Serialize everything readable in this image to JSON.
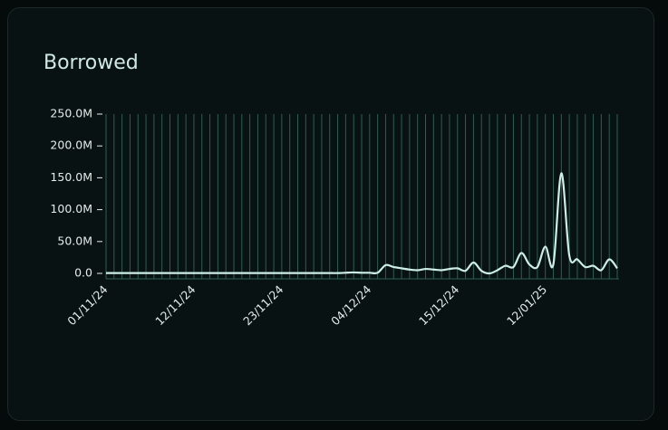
{
  "chart_data": {
    "type": "line",
    "title": "Borrowed",
    "categories": [
      "01/11/24",
      null,
      null,
      null,
      null,
      null,
      null,
      null,
      null,
      null,
      null,
      "12/11/24",
      null,
      null,
      null,
      null,
      null,
      null,
      null,
      null,
      null,
      null,
      "23/11/24",
      null,
      null,
      null,
      null,
      null,
      null,
      null,
      null,
      null,
      null,
      "04/12/24",
      null,
      null,
      null,
      null,
      null,
      null,
      null,
      null,
      null,
      null,
      "15/12/24",
      null,
      null,
      null,
      null,
      null,
      null,
      null,
      null,
      null,
      null,
      "12/01/25",
      null,
      null,
      null,
      null,
      null,
      null,
      null,
      null,
      null
    ],
    "series": [
      {
        "name": "Borrowed",
        "color": "#cdeee6",
        "values": [
          0.5,
          0.5,
          0.5,
          0.5,
          0.5,
          0.5,
          0.5,
          0.5,
          0.5,
          0.5,
          0.5,
          0.5,
          0.5,
          0.5,
          0.5,
          0.5,
          0.5,
          0.5,
          0.5,
          0.5,
          0.5,
          0.5,
          0.5,
          0.5,
          0.5,
          0.5,
          0.5,
          0.5,
          0.5,
          0.5,
          1,
          1.5,
          1,
          1,
          1,
          13,
          10,
          8,
          6,
          5,
          7,
          6,
          5,
          7,
          8,
          4,
          17,
          4,
          0,
          5,
          12,
          10,
          32,
          14,
          10,
          42,
          14,
          157,
          28,
          22,
          10,
          12,
          5,
          22,
          8
        ]
      }
    ],
    "ylim": [
      0,
      250
    ],
    "yticks": [
      {
        "value": 0,
        "label": "0.0"
      },
      {
        "value": 50,
        "label": "50.0M"
      },
      {
        "value": 100,
        "label": "100.0M"
      },
      {
        "value": 150,
        "label": "150.0M"
      },
      {
        "value": 200,
        "label": "200.0M"
      },
      {
        "value": 250,
        "label": "250.0M"
      }
    ],
    "grid": true
  }
}
